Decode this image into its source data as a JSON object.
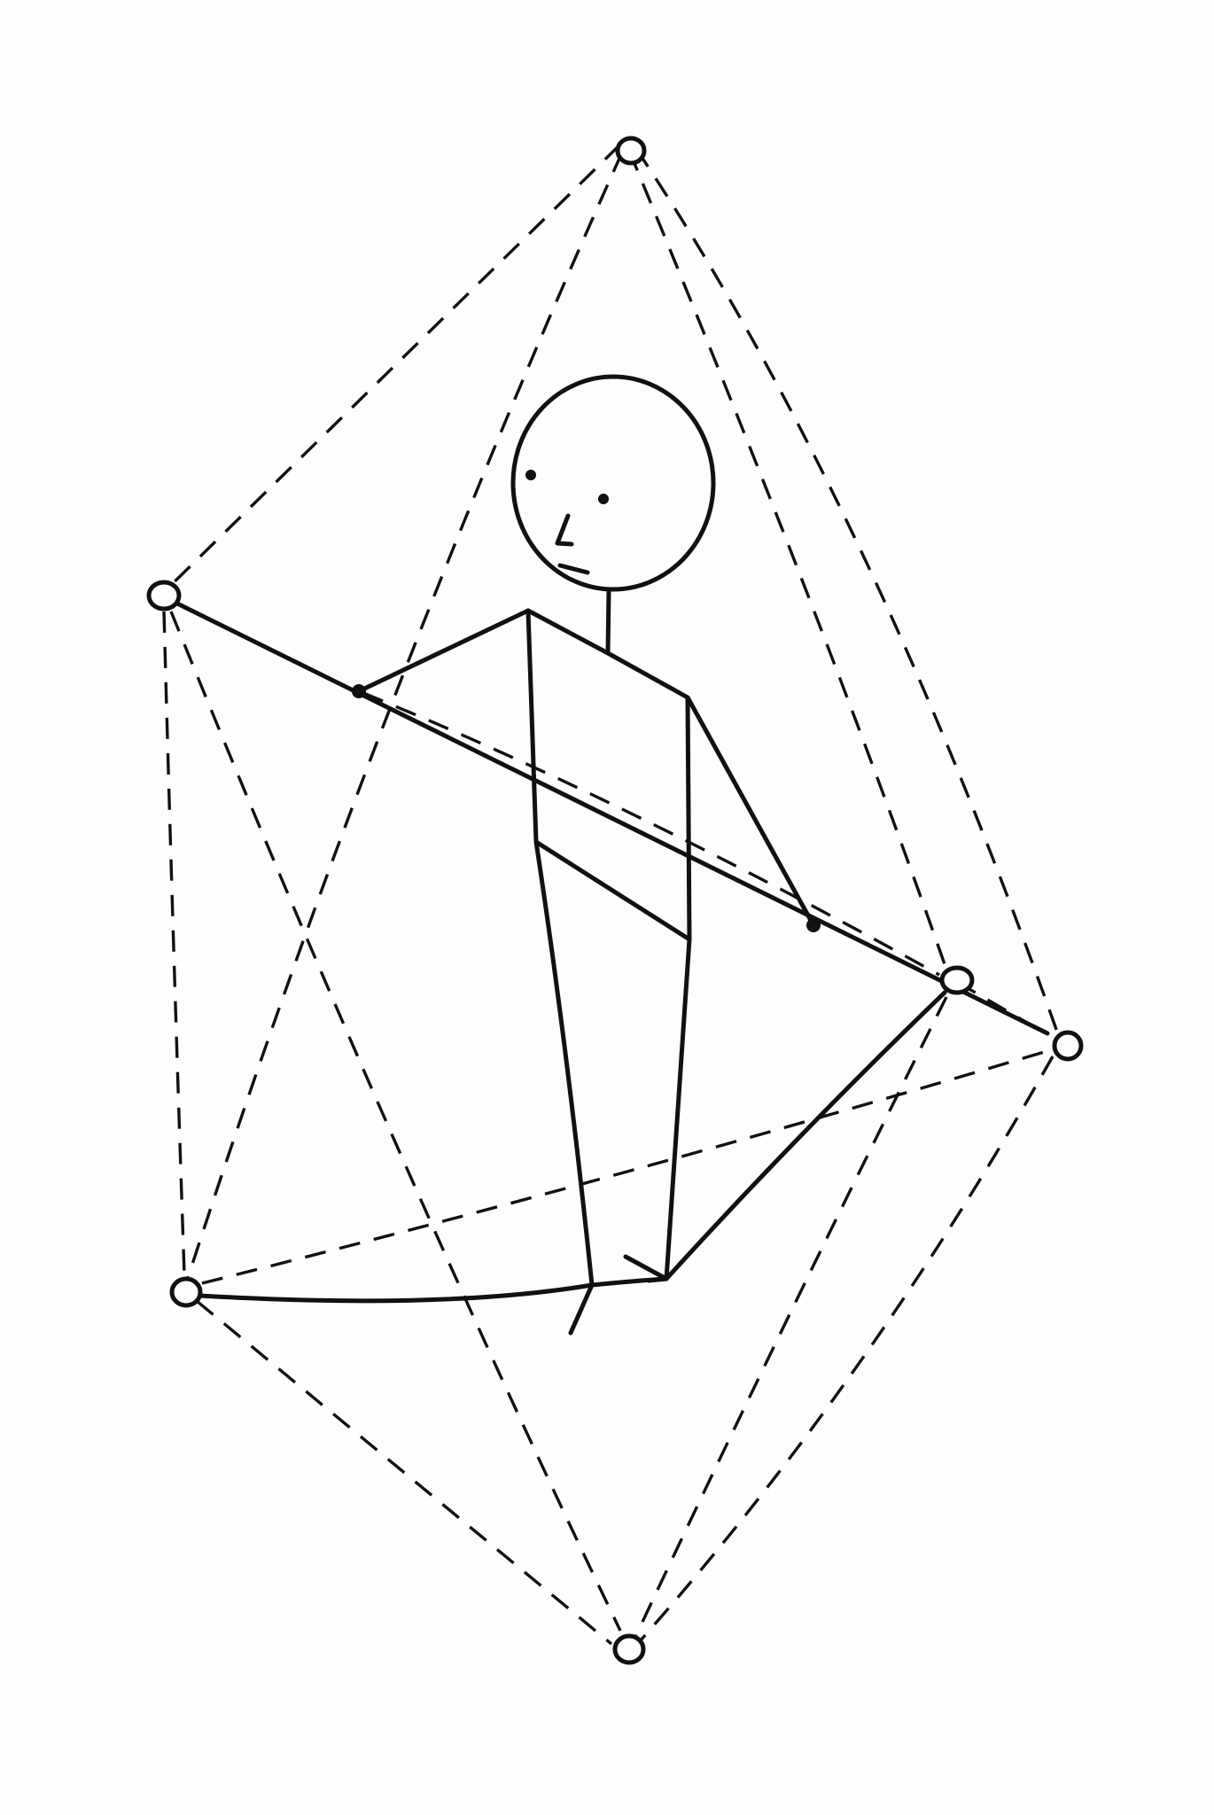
{
  "figure": {
    "subject": "stick-figure-inside-octahedron",
    "ink_color": "#111111",
    "background_color": "#fdfdfd",
    "line_styles": [
      "solid",
      "dashed"
    ],
    "vertex_marker": "hollow-circle",
    "joint_marker": "filled-dot",
    "labels": []
  }
}
